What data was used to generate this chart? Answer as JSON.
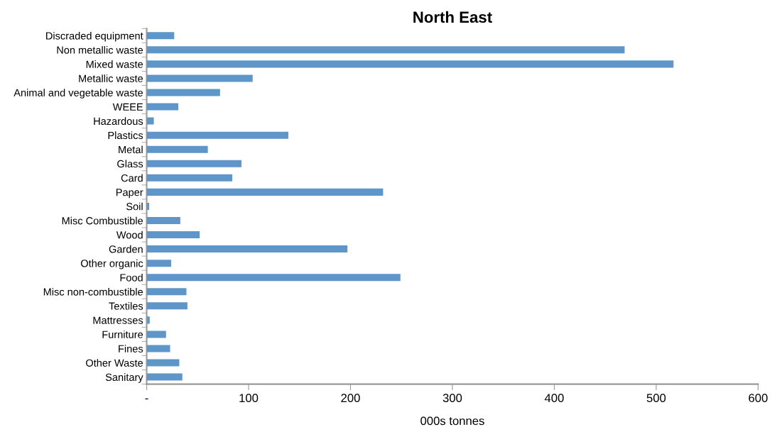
{
  "chart_data": {
    "type": "bar",
    "orientation": "horizontal",
    "title": "North East",
    "xlabel": "000s tonnes",
    "categories": [
      "Discraded equipment",
      "Non metallic waste",
      "Mixed waste",
      "Metallic waste",
      "Animal and vegetable waste",
      "WEEE",
      "Hazardous",
      "Plastics",
      "Metal",
      "Glass",
      "Card",
      "Paper",
      "Soil",
      "Misc Combustible",
      "Wood",
      "Garden",
      "Other organic",
      "Food",
      "Misc non-combustible",
      "Textiles",
      "Mattresses",
      "Furniture",
      "Fines",
      "Other Waste",
      "Sanitary"
    ],
    "values": [
      27,
      469,
      517,
      104,
      72,
      31,
      7,
      139,
      60,
      93,
      84,
      232,
      2.5,
      33,
      52,
      197,
      24,
      249,
      39,
      40,
      3,
      19,
      23,
      32,
      35
    ],
    "color": "#5f96c9",
    "xlim": [
      0,
      600
    ],
    "xticks": [
      {
        "value": 0,
        "label": "-"
      },
      100,
      200,
      300,
      400,
      500,
      600
    ],
    "grid": false,
    "legend": false
  }
}
